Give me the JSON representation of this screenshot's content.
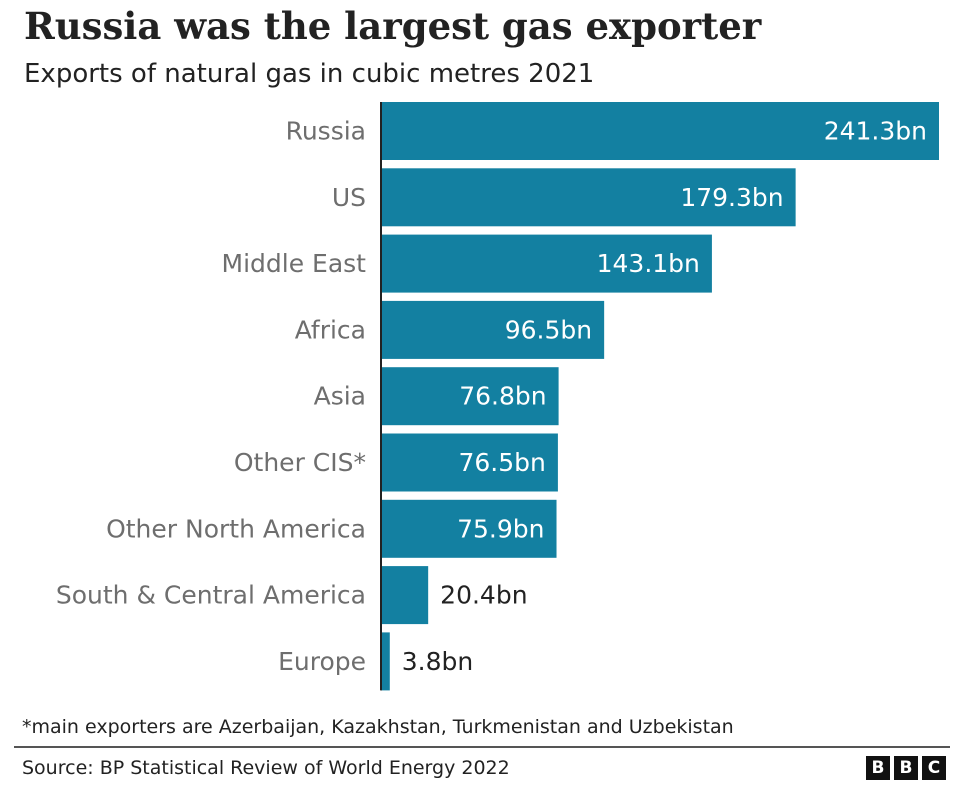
{
  "header": {
    "title": "Russia was the largest gas exporter",
    "subtitle": "Exports of natural gas in cubic metres 2021"
  },
  "chart_data": {
    "type": "bar",
    "orientation": "horizontal",
    "title": "Russia was the largest gas exporter",
    "subtitle": "Exports of natural gas in cubic metres 2021",
    "categories": [
      "Russia",
      "US",
      "Middle East",
      "Africa",
      "Asia",
      "Other CIS*",
      "Other North America",
      "South & Central America",
      "Europe"
    ],
    "values": [
      241.3,
      179.3,
      143.1,
      96.5,
      76.8,
      76.5,
      75.9,
      20.4,
      3.8
    ],
    "value_labels": [
      "241.3bn",
      "179.3bn",
      "143.1bn",
      "96.5bn",
      "76.8bn",
      "76.5bn",
      "75.9bn",
      "20.4bn",
      "3.8bn"
    ],
    "unit": "bn",
    "xlim": [
      0,
      241.3
    ],
    "grid": false,
    "legend": "none",
    "bar_color": "#1380A1"
  },
  "footer": {
    "footnote": "*main exporters are Azerbaijan, Kazakhstan, Turkmenistan and Uzbekistan",
    "source": "Source: BP Statistical Review of World Energy 2022",
    "logo_letters": [
      "B",
      "B",
      "C"
    ]
  },
  "colors": {
    "bar": "#1380A1",
    "label_inside": "#ffffff",
    "label_outside": "#222222",
    "category_text": "#6e6e6e",
    "axis_line": "#222222"
  }
}
